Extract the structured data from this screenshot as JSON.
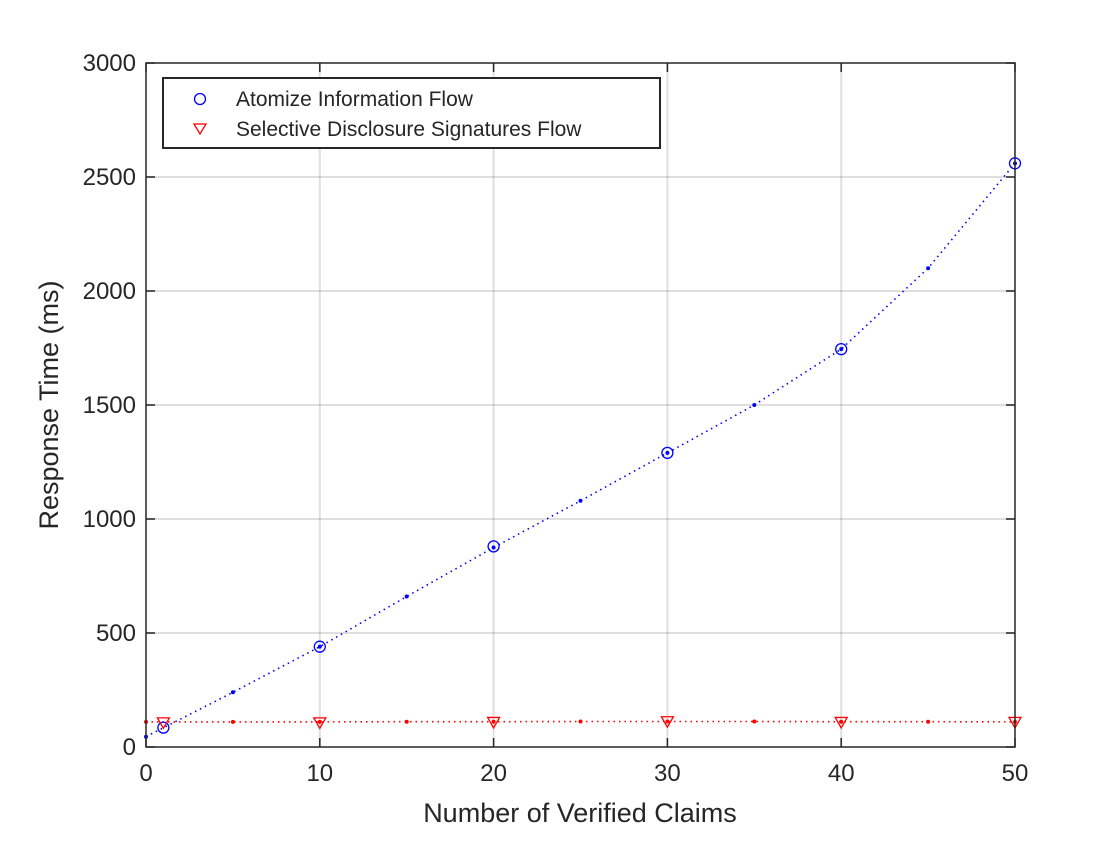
{
  "chart_data": {
    "type": "scatter",
    "title": "",
    "xlabel": "Number of Verified Claims",
    "ylabel": "Response Time (ms)",
    "xlim": [
      0,
      50
    ],
    "ylim": [
      0,
      3000
    ],
    "xticks": [
      0,
      10,
      20,
      30,
      40,
      50
    ],
    "xtick_labels": [
      "0",
      "10",
      "20",
      "30",
      "40",
      "50"
    ],
    "yticks": [
      0,
      500,
      1000,
      1500,
      2000,
      2500,
      3000
    ],
    "ytick_labels": [
      "0",
      "500",
      "1000",
      "1500",
      "2000",
      "2500",
      "3000"
    ],
    "grid": true,
    "legend_placement": "top-left",
    "series": [
      {
        "name": "Atomize Information Flow",
        "color": "#0000ff",
        "marker": "circle",
        "marker_x": [
          1,
          10,
          20,
          30,
          40,
          50
        ],
        "marker_y": [
          85,
          440,
          880,
          1290,
          1745,
          2560
        ],
        "fit_x": [
          0,
          5,
          10,
          15,
          20,
          25,
          30,
          35,
          40,
          45,
          50
        ],
        "fit_y": [
          45,
          240,
          440,
          660,
          875,
          1080,
          1290,
          1500,
          1745,
          2100,
          2560
        ]
      },
      {
        "name": "Selective Disclosure Signatures Flow",
        "color": "#ff0000",
        "marker": "triangle-down",
        "marker_x": [
          1,
          10,
          20,
          30,
          40,
          50
        ],
        "marker_y": [
          108,
          108,
          110,
          113,
          110,
          110
        ],
        "fit_x": [
          0,
          5,
          10,
          15,
          20,
          25,
          30,
          35,
          40,
          45,
          50
        ],
        "fit_y": [
          110,
          110,
          110,
          111,
          111,
          112,
          112,
          112,
          111,
          111,
          110
        ]
      }
    ]
  }
}
